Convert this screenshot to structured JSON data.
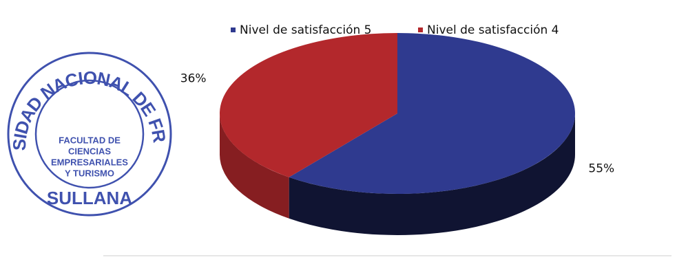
{
  "chart_data": {
    "type": "pie",
    "categories": [
      "Nivel de satisfacción 5",
      "Nivel de satisfacción 4"
    ],
    "values": [
      55,
      36
    ],
    "value_labels": [
      "55%",
      "36%"
    ],
    "colors": [
      "#2f3a8f",
      "#b3282c"
    ],
    "legend": "top"
  },
  "stamp": {
    "ring": "UNIVERSIDAD NACIONAL DE FRONTERA",
    "center": [
      "FACULTAD DE",
      "CIENCIAS",
      "EMPRESARIALES",
      "Y TURISMO"
    ],
    "bottom": "SULLANA"
  }
}
